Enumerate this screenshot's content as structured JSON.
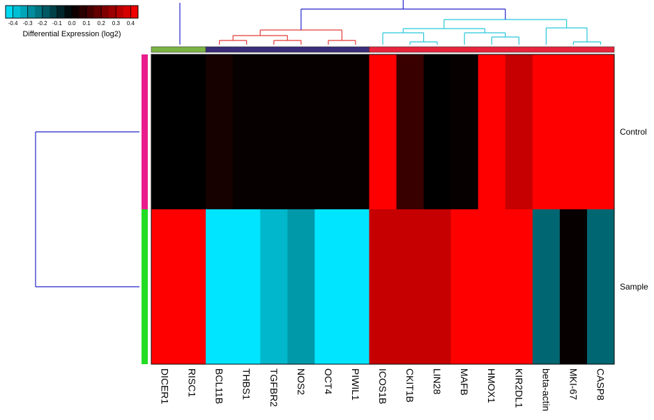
{
  "chart_data": {
    "type": "heatmap",
    "title": "",
    "genes": [
      "DICER1",
      "RISC1",
      "BCL11B",
      "THBS1",
      "TGFBR2",
      "NOS2",
      "OCT4",
      "PIWIL1",
      "ICOS1B",
      "CKIT1B",
      "LIN28",
      "MAFB",
      "HMOX1",
      "KIR2DL1",
      "beta-actin",
      "MKI-67",
      "CASP8"
    ],
    "conditions": [
      "Control",
      "Sample"
    ],
    "values": [
      [
        0.0,
        0.0,
        0.04,
        0.01,
        0.01,
        0.01,
        0.01,
        0.01,
        0.45,
        0.1,
        0.0,
        0.01,
        0.45,
        0.35,
        0.45,
        0.45,
        0.45
      ],
      [
        0.45,
        0.45,
        -0.45,
        -0.45,
        -0.36,
        -0.3,
        -0.45,
        -0.45,
        0.35,
        0.35,
        0.35,
        0.45,
        0.45,
        0.45,
        -0.2,
        0.01,
        -0.2
      ]
    ],
    "color_scale": {
      "label": "Differential Expression (log2)",
      "ticks": [
        "-0.4",
        "-0.3",
        "-0.2",
        "-0.1",
        "0.0",
        "0.1",
        "0.2",
        "0.3",
        "0.4"
      ],
      "tick_values": [
        -0.4,
        -0.3,
        -0.2,
        -0.1,
        0.0,
        0.1,
        0.2,
        0.3,
        0.4
      ],
      "min": -0.45,
      "max": 0.45,
      "low_color": "#00e5ff",
      "mid_color": "#000000",
      "high_color": "#ff0000"
    },
    "gene_clusters": [
      {
        "genes": [
          "DICER1",
          "RISC1"
        ],
        "color": "#7cb342"
      },
      {
        "genes": [
          "BCL11B",
          "THBS1",
          "TGFBR2",
          "NOS2",
          "OCT4",
          "PIWIL1"
        ],
        "color": "#3a2d7a"
      },
      {
        "genes": [
          "ICOS1B",
          "CKIT1B",
          "LIN28",
          "MAFB",
          "HMOX1",
          "KIR2DL1",
          "beta-actin",
          "MKI-67",
          "CASP8"
        ],
        "color": "#e8243c"
      }
    ],
    "condition_colors": [
      "#e91e8c",
      "#22dd22"
    ],
    "dendrogram_colors": {
      "top": "#2222cc",
      "left": "#2222cc",
      "red_cluster": "#e53935",
      "cyan_cluster": "#26c6da",
      "green_cluster": "#2222cc"
    }
  }
}
